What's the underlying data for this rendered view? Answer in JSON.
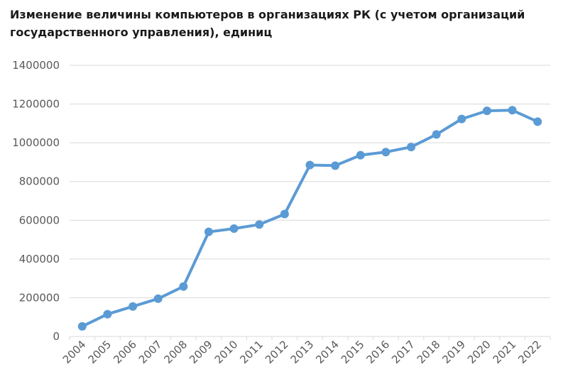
{
  "chart_data": {
    "type": "line",
    "title": "Изменение величины компьютеров в организациях РК (с учетом организаций государственного управления), единиц",
    "xlabel": "",
    "ylabel": "",
    "ylim": [
      0,
      1400000
    ],
    "yticks": [
      "0",
      "200000",
      "400000",
      "600000",
      "800000",
      "1000000",
      "1200000",
      "1400000"
    ],
    "grid": true,
    "legend": "none",
    "color": "#5b9bd5",
    "categories": [
      "2004",
      "2005",
      "2006",
      "2007",
      "2008",
      "2009",
      "2010",
      "2011",
      "2012",
      "2013",
      "2014",
      "2015",
      "2016",
      "2017",
      "2018",
      "2019",
      "2020",
      "2021",
      "2022"
    ],
    "series": [
      {
        "values": [
          52000,
          115000,
          155000,
          195000,
          258000,
          540000,
          557000,
          578000,
          632000,
          885000,
          882000,
          936000,
          952000,
          978000,
          1043000,
          1123000,
          1165000,
          1168000,
          1109000
        ]
      }
    ]
  }
}
